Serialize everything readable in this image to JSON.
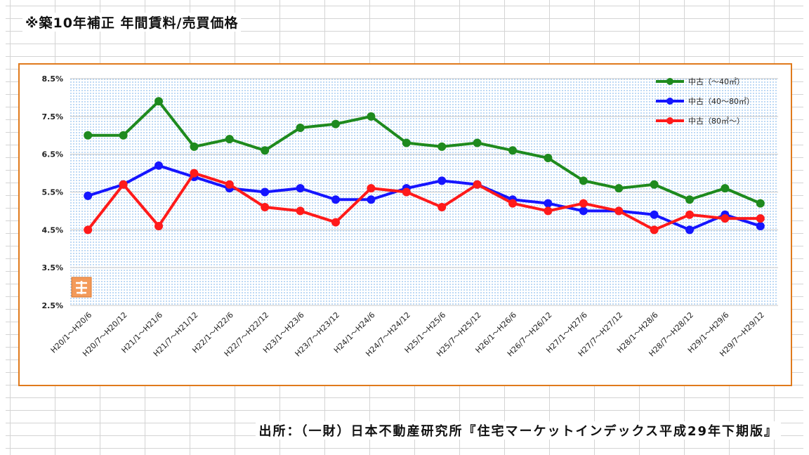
{
  "page": {
    "heading": "※築10年補正 年間賃料/売買価格",
    "source": "出所：（一財）日本不動産研究所『住宅マーケットインデックス平成29年下期版』"
  },
  "chart_data": {
    "type": "line",
    "title": "※築10年補正 年間賃料/売買価格",
    "xlabel": "",
    "ylabel": "",
    "ylim": [
      2.5,
      8.5
    ],
    "yticks": [
      2.5,
      3.5,
      4.5,
      5.5,
      6.5,
      7.5,
      8.5
    ],
    "ytick_labels": [
      "2.5%",
      "3.5%",
      "4.5%",
      "5.5%",
      "6.5%",
      "7.5%",
      "8.5%"
    ],
    "grid": true,
    "legend": "top-right",
    "categories": [
      "H20/1～H20/6",
      "H20/7～H20/12",
      "H21/1～H21/6",
      "H21/7～H21/12",
      "H22/1～H22/6",
      "H22/7～H22/12",
      "H23/1～H23/6",
      "H23/7～H23/12",
      "H24/1～H24/6",
      "H24/7～H24/12",
      "H25/1～H25/6",
      "H25/7～H25/12",
      "H26/1～H26/6",
      "H26/7～H26/12",
      "H27/1～H27/6",
      "H27/7～H27/12",
      "H28/1～H28/6",
      "H28/7～H28/12",
      "H29/1～H29/6",
      "H29/7～H29/12"
    ],
    "series": [
      {
        "name": "中古（～40㎡）",
        "color": "#1e8a1e",
        "values": [
          7.0,
          7.0,
          7.9,
          6.7,
          6.9,
          6.6,
          7.2,
          7.3,
          7.5,
          6.8,
          6.7,
          6.8,
          6.6,
          6.4,
          5.8,
          5.6,
          5.7,
          5.3,
          5.6,
          5.2
        ]
      },
      {
        "name": "中古（40～80㎡）",
        "color": "#1515ff",
        "values": [
          5.4,
          5.7,
          6.2,
          5.9,
          5.6,
          5.5,
          5.6,
          5.3,
          5.3,
          5.6,
          5.8,
          5.7,
          5.3,
          5.2,
          5.0,
          5.0,
          4.9,
          4.5,
          4.9,
          4.6
        ]
      },
      {
        "name": "中古（80㎡～）",
        "color": "#ff1a1a",
        "values": [
          4.5,
          5.7,
          4.6,
          6.0,
          5.7,
          5.1,
          5.0,
          4.7,
          5.6,
          5.5,
          5.1,
          5.7,
          5.2,
          5.0,
          5.2,
          5.0,
          4.5,
          4.9,
          4.8,
          4.8
        ]
      }
    ]
  }
}
